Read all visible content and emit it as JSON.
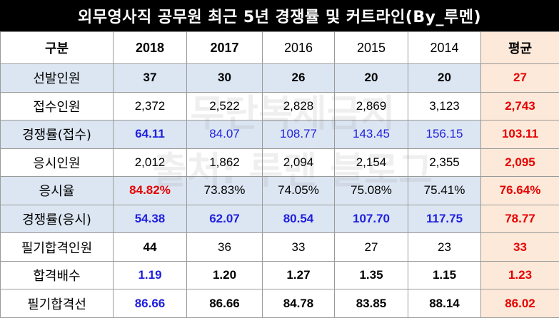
{
  "title": "외무영사직 공무원 최근 5년 경쟁률 및 커트라인(By_루멘)",
  "watermark": {
    "line1": "무단복제금지",
    "line2": "출처: 루멘 블로그"
  },
  "header": [
    "구분",
    "2018",
    "2017",
    "2016",
    "2015",
    "2014",
    "평균"
  ],
  "rows": [
    {
      "label": "선발인원",
      "values": [
        "37",
        "30",
        "26",
        "20",
        "20",
        "27"
      ]
    },
    {
      "label": "접수인원",
      "values": [
        "2,372",
        "2,522",
        "2,828",
        "2,869",
        "3,123",
        "2,743"
      ]
    },
    {
      "label": "경쟁률(접수)",
      "values": [
        "64.11",
        "84.07",
        "108.77",
        "143.45",
        "156.15",
        "103.11"
      ]
    },
    {
      "label": "응시인원",
      "values": [
        "2,012",
        "1,862",
        "2,094",
        "2,154",
        "2,355",
        "2,095"
      ]
    },
    {
      "label": "응시율",
      "values": [
        "84.82%",
        "73.83%",
        "74.05%",
        "75.08%",
        "75.41%",
        "76.64%"
      ]
    },
    {
      "label": "경쟁률(응시)",
      "values": [
        "54.38",
        "62.07",
        "80.54",
        "107.70",
        "117.75",
        "78.77"
      ]
    },
    {
      "label": "필기합격인원",
      "values": [
        "44",
        "36",
        "33",
        "27",
        "23",
        "33"
      ]
    },
    {
      "label": "합격배수",
      "values": [
        "1.19",
        "1.20",
        "1.27",
        "1.35",
        "1.15",
        "1.23"
      ]
    },
    {
      "label": "필기합격선",
      "values": [
        "86.66",
        "86.66",
        "84.78",
        "83.85",
        "88.14",
        "86.02"
      ]
    }
  ],
  "colors": {
    "title_bg": "#000000",
    "shade": "#dce6f2",
    "avg_bg": "#fde9d9",
    "blue": "#1f1fe0",
    "red": "#e60000"
  }
}
